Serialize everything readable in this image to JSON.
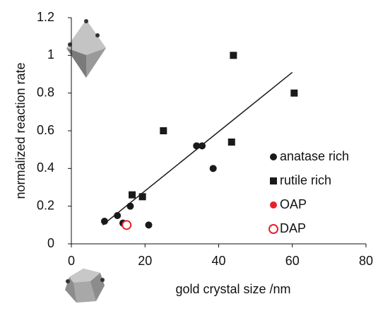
{
  "chart_data": {
    "type": "scatter",
    "xlabel": "gold crystal size /nm",
    "ylabel": "normalized reaction rate",
    "xlim": [
      0,
      80
    ],
    "xticks": [
      0,
      20,
      40,
      60,
      80
    ],
    "ylim": [
      0,
      1.2
    ],
    "yticks": [
      0,
      0.2,
      0.4,
      0.6,
      0.8,
      1,
      1.2
    ],
    "series": [
      {
        "name": "anatase rich",
        "color": "#1a1a1a",
        "marker": "circle",
        "filled": true,
        "x": [
          9,
          12.5,
          14,
          16,
          21,
          34,
          35.5,
          38.5
        ],
        "values": [
          0.12,
          0.15,
          0.11,
          0.2,
          0.1,
          0.52,
          0.52,
          0.4
        ]
      },
      {
        "name": "rutile rich",
        "color": "#1a1a1a",
        "marker": "square",
        "filled": true,
        "x": [
          16.5,
          19.3,
          25,
          43.5,
          44,
          60.5
        ],
        "values": [
          0.26,
          0.25,
          0.6,
          0.54,
          1.0,
          0.8
        ]
      },
      {
        "name": "OAP",
        "color": "#e8202a",
        "marker": "circle",
        "filled": true,
        "x": [],
        "values": []
      },
      {
        "name": "DAP",
        "color": "#e8202a",
        "marker": "circle",
        "filled": false,
        "x": [
          15
        ],
        "values": [
          0.1
        ]
      }
    ],
    "trendline": {
      "color": "#1a1a1a",
      "x": [
        8.5,
        60
      ],
      "values": [
        0.1,
        0.91
      ]
    }
  }
}
